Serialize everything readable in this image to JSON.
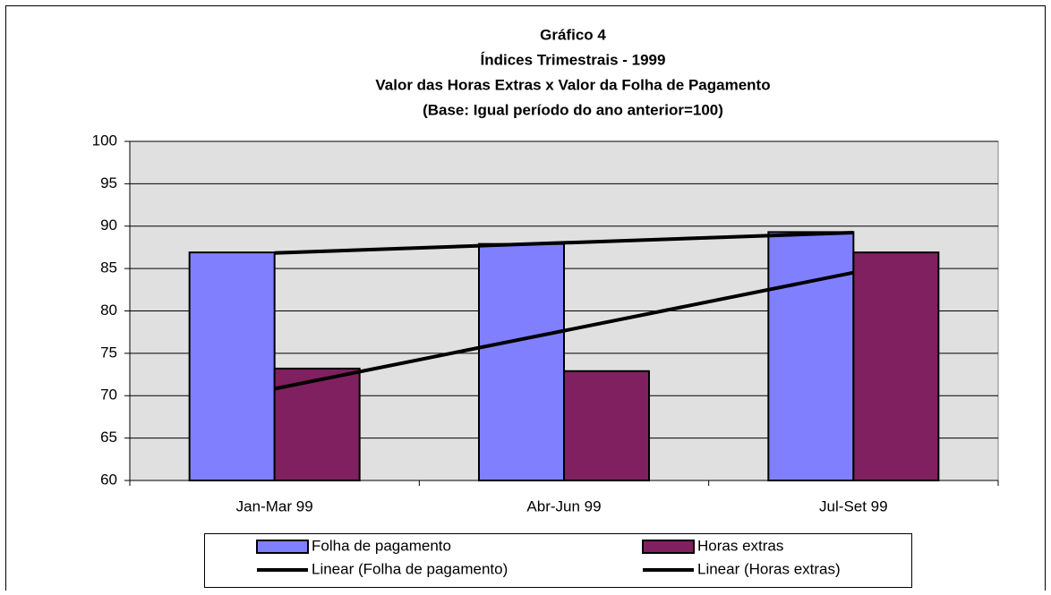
{
  "chart_data": {
    "type": "bar",
    "title": [
      "Gráfico 4",
      "Índices Trimestrais - 1999",
      "Valor das Horas Extras  x  Valor da Folha de Pagamento",
      "(Base: Igual período do ano anterior=100)"
    ],
    "categories": [
      "Jan-Mar 99",
      "Abr-Jun 99",
      "Jul-Set 99"
    ],
    "series": [
      {
        "name": "Folha de pagamento",
        "color": "#8080ff",
        "values": [
          86.9,
          87.9,
          89.3
        ]
      },
      {
        "name": "Horas extras",
        "color": "#802060",
        "values": [
          73.2,
          72.9,
          86.9
        ]
      }
    ],
    "trendlines": [
      {
        "name": "Linear (Folha de pagamento)",
        "series": 0,
        "color": "#000000"
      },
      {
        "name": "Linear (Horas extras)",
        "series": 1,
        "color": "#000000"
      }
    ],
    "ylim": [
      60,
      100
    ],
    "yticks": [
      60,
      65,
      70,
      75,
      80,
      85,
      90,
      95,
      100
    ],
    "grid": true
  }
}
